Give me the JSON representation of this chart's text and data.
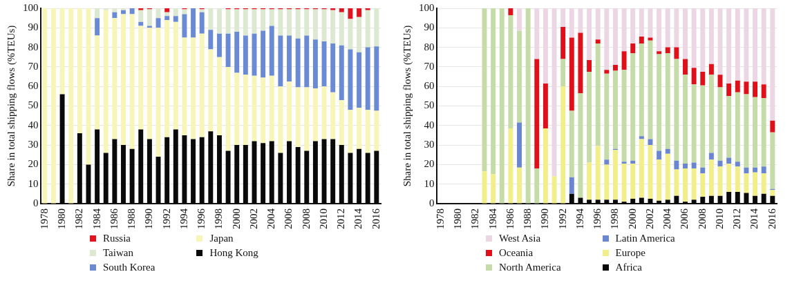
{
  "chart_data": [
    {
      "type": "bar",
      "ylabel": "Share in total shipping flows (%TEUs)",
      "stacked": true,
      "ylim": [
        0,
        100
      ],
      "yticks": [
        0,
        10,
        20,
        30,
        40,
        50,
        60,
        70,
        80,
        90,
        100
      ],
      "grid": "y",
      "legend": "bottom",
      "categories": [
        "1978",
        null,
        "1980",
        null,
        "1982",
        null,
        "1984",
        null,
        "1986",
        null,
        "1988",
        null,
        "1990",
        null,
        "1992",
        null,
        "1994",
        null,
        "1996",
        null,
        "1998",
        null,
        "2000",
        null,
        "2002",
        null,
        "2004",
        null,
        "2006",
        null,
        "2008",
        null,
        "2010",
        null,
        "2012",
        null,
        "2014",
        null,
        "2016"
      ],
      "series": [
        {
          "name": "Hong Kong",
          "color": "#0a0a0a",
          "values": [
            0,
            0,
            56,
            0,
            36,
            20,
            38,
            26,
            33,
            30,
            28,
            38,
            33,
            24,
            34,
            38,
            35,
            33,
            34,
            37,
            35,
            27,
            30,
            30,
            32,
            31,
            32,
            26,
            32,
            29,
            27,
            32,
            33,
            33,
            30,
            26,
            28,
            26,
            27
          ]
        },
        {
          "name": "Japan",
          "color": "#f7f5b8",
          "values": [
            100,
            100,
            44,
            100,
            64,
            80,
            48,
            73,
            62,
            67,
            69,
            53,
            57,
            66,
            60,
            55,
            50,
            52,
            53,
            42,
            40,
            43,
            37,
            36,
            33.5,
            33.5,
            33.5,
            34,
            30.5,
            30.5,
            32.5,
            27,
            27,
            24,
            23,
            22,
            21,
            22,
            20.5
          ]
        },
        {
          "name": "South Korea",
          "color": "#6a8bd4",
          "values": [
            0,
            0,
            0,
            0,
            0,
            0,
            9,
            0,
            3,
            2,
            3,
            2,
            1,
            5,
            2,
            3,
            12,
            15,
            11,
            10,
            12,
            17,
            21,
            20,
            21.5,
            24,
            25.5,
            26,
            23.5,
            25,
            26.5,
            25,
            23,
            25,
            28,
            31,
            28.5,
            32,
            33
          ]
        },
        {
          "name": "Taiwan",
          "color": "#dde8d0",
          "values": [
            0,
            0,
            0,
            0,
            0,
            0,
            5,
            1,
            2,
            1,
            0,
            6,
            8.5,
            5,
            2,
            4,
            2.5,
            0,
            1.5,
            11,
            13,
            12.5,
            11.5,
            13.5,
            12.5,
            11,
            8.5,
            13.5,
            13.5,
            15,
            13.5,
            15.5,
            16.5,
            17,
            17,
            15.5,
            18,
            19,
            19.5
          ]
        },
        {
          "name": "Russia",
          "color": "#e0141e",
          "values": [
            0,
            0,
            0,
            0,
            0,
            0,
            0,
            0,
            0,
            0,
            0,
            1,
            0.5,
            0,
            2,
            0,
            0.5,
            0,
            0.5,
            0,
            0,
            0.5,
            0.5,
            0.5,
            0.5,
            0.5,
            0.5,
            0.5,
            0.5,
            0.5,
            0.5,
            0.5,
            0.5,
            1,
            2,
            5.5,
            4.5,
            1,
            0
          ]
        }
      ]
    },
    {
      "type": "bar",
      "ylabel": "Share in total shipping flows (%TEUs)",
      "stacked": true,
      "ylim": [
        0,
        100
      ],
      "yticks": [
        0,
        10,
        20,
        30,
        40,
        50,
        60,
        70,
        80,
        90,
        100
      ],
      "grid": "y",
      "legend": "bottom",
      "categories": [
        "1978",
        null,
        "1980",
        null,
        "1982",
        null,
        "1984",
        null,
        "1986",
        null,
        "1988",
        null,
        "1990",
        null,
        "1992",
        null,
        "1994",
        null,
        "1996",
        null,
        "1998",
        null,
        "2000",
        null,
        "2002",
        null,
        "2004",
        null,
        "2006",
        null,
        "2008",
        null,
        "2010",
        null,
        "2012",
        null,
        "2014",
        null,
        "2016"
      ],
      "series": [
        {
          "name": "Africa",
          "color": "#0a0a0a",
          "values": [
            null,
            null,
            null,
            null,
            null,
            0,
            0,
            0,
            0,
            0,
            0,
            0,
            0,
            0,
            0,
            5,
            3,
            2,
            2,
            2,
            2,
            1,
            2.5,
            3,
            2.5,
            1.5,
            2,
            4,
            1,
            2,
            3.5,
            4,
            4,
            6,
            6,
            5.5,
            4,
            5,
            4
          ]
        },
        {
          "name": "Europe",
          "color": "#f2ee8a",
          "values": [
            null,
            null,
            null,
            null,
            null,
            16.5,
            15,
            0,
            38.5,
            18.5,
            0,
            0,
            38.5,
            14,
            60,
            0,
            0,
            19,
            27.5,
            18,
            25.5,
            19.5,
            18,
            30,
            27.5,
            21,
            23.5,
            13.5,
            17,
            16,
            12,
            18.5,
            15,
            14.5,
            13,
            10,
            12,
            10.5,
            3
          ]
        },
        {
          "name": "Latin America",
          "color": "#6a86d0",
          "values": [
            null,
            null,
            null,
            null,
            null,
            0,
            0,
            0,
            0,
            23,
            0,
            0,
            0,
            0,
            0,
            8.5,
            0,
            0,
            0,
            2.5,
            0.5,
            1,
            1.5,
            1.5,
            3,
            4.5,
            2.5,
            4.5,
            2.5,
            3,
            3,
            3.5,
            3,
            3,
            2.5,
            3,
            2.5,
            3.5,
            0.5
          ]
        },
        {
          "name": "North America",
          "color": "#c5dca8",
          "values": [
            null,
            null,
            null,
            null,
            null,
            83.5,
            85,
            100,
            58,
            47,
            100,
            18,
            0,
            0,
            14,
            34,
            53.5,
            46.5,
            52.5,
            44,
            40,
            47,
            55,
            47.5,
            50.5,
            49.5,
            49,
            52,
            45.5,
            40,
            42,
            40,
            37.5,
            31.5,
            35.5,
            37.5,
            36,
            35,
            29
          ]
        },
        {
          "name": "Oceania",
          "color": "#e0101a",
          "values": [
            null,
            null,
            null,
            null,
            null,
            0,
            0,
            0,
            3.5,
            0,
            0,
            56,
            23,
            0,
            16.5,
            37.5,
            31,
            6,
            2,
            2,
            3,
            9.5,
            5,
            3.5,
            1.5,
            1.5,
            3,
            6,
            8,
            8.5,
            7,
            5.5,
            6.5,
            6.5,
            6,
            6.5,
            8,
            7,
            6
          ]
        },
        {
          "name": "West Asia",
          "color": "#ecd6e4",
          "values": [
            null,
            null,
            null,
            null,
            null,
            0,
            0,
            0,
            0,
            11.5,
            0,
            26,
            38.5,
            86,
            9.5,
            15,
            12.5,
            26.5,
            16,
            31.5,
            29,
            22,
            18,
            14.5,
            15,
            22,
            20,
            20,
            26,
            30.5,
            32.5,
            28.5,
            34,
            38.5,
            37,
            37.5,
            37.5,
            39,
            57.5
          ]
        }
      ]
    }
  ]
}
